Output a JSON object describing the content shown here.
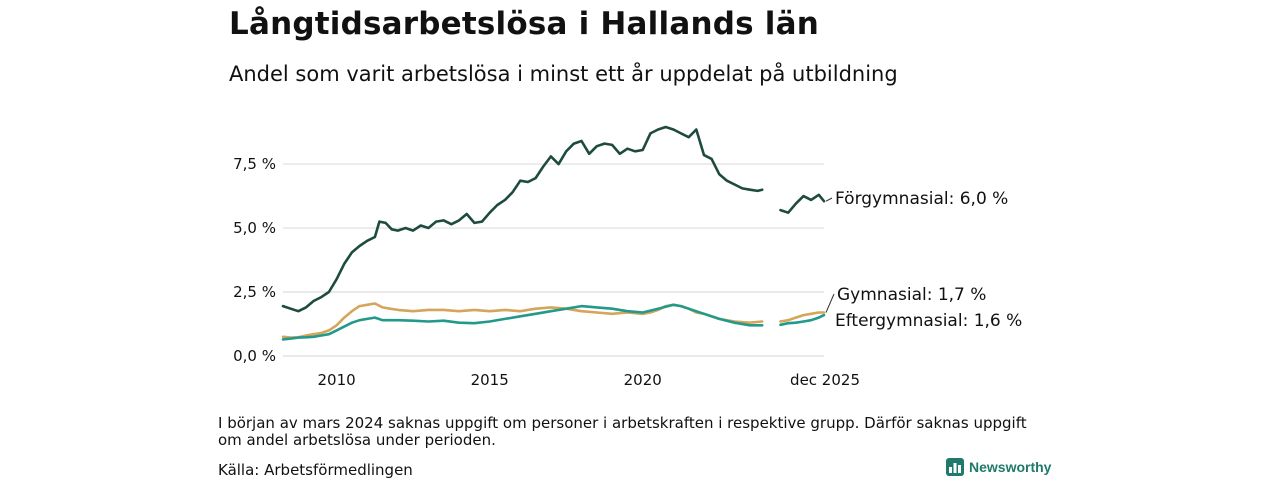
{
  "title": "Långtidsarbetslösa i Hallands län",
  "subtitle": "Andel som varit arbetslösa i minst ett år uppdelat på utbildning",
  "note": "I början av mars 2024 saknas uppgift om personer i arbetskraften i respektive grupp. Därför saknas uppgift om andel arbetslösa under perioden.",
  "source": "Källa: Arbetsförmedlingen",
  "brand": "Newsworthy",
  "colors": {
    "forgymnasial": "#1f4a40",
    "gymnasial": "#d4a55a",
    "eftergymnasial": "#22998a",
    "grid": "#dddddd",
    "brand": "#1f7a6c"
  },
  "chart_data": {
    "type": "line",
    "title": "Långtidsarbetslösa i Hallands län",
    "subtitle": "Andel som varit arbetslösa i minst ett år uppdelat på utbildning",
    "xlim": [
      2008.25,
      2025.92
    ],
    "ylim": [
      0,
      9.3
    ],
    "x_ticks": [
      {
        "value": 2010,
        "label": "2010"
      },
      {
        "value": 2015,
        "label": "2015"
      },
      {
        "value": 2020,
        "label": "2020"
      },
      {
        "value": 2025.92,
        "label": "dec 2025"
      }
    ],
    "y_ticks": [
      {
        "value": 0,
        "label": "0,0 %"
      },
      {
        "value": 2.5,
        "label": "2,5 %"
      },
      {
        "value": 5.0,
        "label": "5,0 %"
      },
      {
        "value": 7.5,
        "label": "7,5 %"
      }
    ],
    "grid": true,
    "gap": [
      2024.17,
      2024.5
    ],
    "series": [
      {
        "name": "Förgymnasial",
        "label": "Förgymnasial: 6,0 %",
        "color_key": "forgymnasial",
        "points": [
          [
            2008.25,
            1.95
          ],
          [
            2008.5,
            1.85
          ],
          [
            2008.75,
            1.75
          ],
          [
            2009.0,
            1.9
          ],
          [
            2009.25,
            2.15
          ],
          [
            2009.5,
            2.3
          ],
          [
            2009.75,
            2.5
          ],
          [
            2010.0,
            3.0
          ],
          [
            2010.25,
            3.6
          ],
          [
            2010.5,
            4.05
          ],
          [
            2010.75,
            4.3
          ],
          [
            2011.0,
            4.5
          ],
          [
            2011.25,
            4.65
          ],
          [
            2011.4,
            5.25
          ],
          [
            2011.6,
            5.2
          ],
          [
            2011.8,
            4.95
          ],
          [
            2012.0,
            4.9
          ],
          [
            2012.25,
            5.0
          ],
          [
            2012.5,
            4.9
          ],
          [
            2012.75,
            5.1
          ],
          [
            2013.0,
            5.0
          ],
          [
            2013.25,
            5.25
          ],
          [
            2013.5,
            5.3
          ],
          [
            2013.75,
            5.15
          ],
          [
            2014.0,
            5.3
          ],
          [
            2014.25,
            5.55
          ],
          [
            2014.5,
            5.2
          ],
          [
            2014.75,
            5.25
          ],
          [
            2015.0,
            5.6
          ],
          [
            2015.25,
            5.9
          ],
          [
            2015.5,
            6.1
          ],
          [
            2015.75,
            6.4
          ],
          [
            2016.0,
            6.85
          ],
          [
            2016.25,
            6.8
          ],
          [
            2016.5,
            6.95
          ],
          [
            2016.75,
            7.4
          ],
          [
            2017.0,
            7.8
          ],
          [
            2017.25,
            7.5
          ],
          [
            2017.5,
            8.0
          ],
          [
            2017.75,
            8.3
          ],
          [
            2018.0,
            8.4
          ],
          [
            2018.25,
            7.9
          ],
          [
            2018.5,
            8.2
          ],
          [
            2018.75,
            8.3
          ],
          [
            2019.0,
            8.25
          ],
          [
            2019.25,
            7.9
          ],
          [
            2019.5,
            8.1
          ],
          [
            2019.75,
            8.0
          ],
          [
            2020.0,
            8.05
          ],
          [
            2020.25,
            8.7
          ],
          [
            2020.5,
            8.85
          ],
          [
            2020.75,
            8.95
          ],
          [
            2021.0,
            8.85
          ],
          [
            2021.25,
            8.7
          ],
          [
            2021.5,
            8.55
          ],
          [
            2021.75,
            8.85
          ],
          [
            2022.0,
            7.85
          ],
          [
            2022.25,
            7.7
          ],
          [
            2022.5,
            7.1
          ],
          [
            2022.75,
            6.85
          ],
          [
            2023.0,
            6.7
          ],
          [
            2023.25,
            6.55
          ],
          [
            2023.5,
            6.5
          ],
          [
            2023.75,
            6.45
          ],
          [
            2023.9,
            6.5
          ],
          [
            2024.17,
            null
          ],
          [
            2024.5,
            5.7
          ],
          [
            2024.75,
            5.6
          ],
          [
            2025.0,
            5.95
          ],
          [
            2025.25,
            6.25
          ],
          [
            2025.5,
            6.1
          ],
          [
            2025.75,
            6.3
          ],
          [
            2025.92,
            6.05
          ]
        ]
      },
      {
        "name": "Gymnasial",
        "label": "Gymnasial: 1,7 %",
        "color_key": "gymnasial",
        "points": [
          [
            2008.25,
            0.75
          ],
          [
            2008.5,
            0.72
          ],
          [
            2008.75,
            0.73
          ],
          [
            2009.0,
            0.8
          ],
          [
            2009.25,
            0.85
          ],
          [
            2009.5,
            0.9
          ],
          [
            2009.75,
            1.0
          ],
          [
            2010.0,
            1.2
          ],
          [
            2010.25,
            1.5
          ],
          [
            2010.5,
            1.75
          ],
          [
            2010.75,
            1.95
          ],
          [
            2011.0,
            2.0
          ],
          [
            2011.25,
            2.05
          ],
          [
            2011.5,
            1.9
          ],
          [
            2011.75,
            1.85
          ],
          [
            2012.0,
            1.8
          ],
          [
            2012.5,
            1.75
          ],
          [
            2013.0,
            1.8
          ],
          [
            2013.5,
            1.8
          ],
          [
            2014.0,
            1.75
          ],
          [
            2014.5,
            1.8
          ],
          [
            2015.0,
            1.75
          ],
          [
            2015.5,
            1.8
          ],
          [
            2016.0,
            1.75
          ],
          [
            2016.5,
            1.85
          ],
          [
            2017.0,
            1.9
          ],
          [
            2017.5,
            1.85
          ],
          [
            2018.0,
            1.75
          ],
          [
            2018.5,
            1.7
          ],
          [
            2019.0,
            1.65
          ],
          [
            2019.5,
            1.7
          ],
          [
            2020.0,
            1.65
          ],
          [
            2020.25,
            1.7
          ],
          [
            2020.5,
            1.8
          ],
          [
            2020.75,
            1.95
          ],
          [
            2021.0,
            2.0
          ],
          [
            2021.25,
            1.95
          ],
          [
            2021.5,
            1.85
          ],
          [
            2021.75,
            1.7
          ],
          [
            2022.0,
            1.65
          ],
          [
            2022.5,
            1.45
          ],
          [
            2023.0,
            1.35
          ],
          [
            2023.5,
            1.3
          ],
          [
            2023.9,
            1.35
          ],
          [
            2024.17,
            null
          ],
          [
            2024.5,
            1.35
          ],
          [
            2024.75,
            1.4
          ],
          [
            2025.0,
            1.5
          ],
          [
            2025.25,
            1.6
          ],
          [
            2025.5,
            1.65
          ],
          [
            2025.75,
            1.7
          ],
          [
            2025.92,
            1.7
          ]
        ]
      },
      {
        "name": "Eftergymnasial",
        "label": "Eftergymnasial: 1,6 %",
        "color_key": "eftergymnasial",
        "points": [
          [
            2008.25,
            0.65
          ],
          [
            2008.5,
            0.68
          ],
          [
            2008.75,
            0.72
          ],
          [
            2009.0,
            0.73
          ],
          [
            2009.25,
            0.75
          ],
          [
            2009.5,
            0.8
          ],
          [
            2009.75,
            0.85
          ],
          [
            2010.0,
            1.0
          ],
          [
            2010.25,
            1.15
          ],
          [
            2010.5,
            1.3
          ],
          [
            2010.75,
            1.4
          ],
          [
            2011.0,
            1.45
          ],
          [
            2011.25,
            1.5
          ],
          [
            2011.5,
            1.4
          ],
          [
            2012.0,
            1.4
          ],
          [
            2012.5,
            1.38
          ],
          [
            2013.0,
            1.35
          ],
          [
            2013.5,
            1.38
          ],
          [
            2014.0,
            1.3
          ],
          [
            2014.5,
            1.28
          ],
          [
            2015.0,
            1.35
          ],
          [
            2015.5,
            1.45
          ],
          [
            2016.0,
            1.55
          ],
          [
            2016.5,
            1.65
          ],
          [
            2017.0,
            1.75
          ],
          [
            2017.5,
            1.85
          ],
          [
            2018.0,
            1.95
          ],
          [
            2018.5,
            1.9
          ],
          [
            2019.0,
            1.85
          ],
          [
            2019.5,
            1.75
          ],
          [
            2020.0,
            1.7
          ],
          [
            2020.5,
            1.85
          ],
          [
            2021.0,
            2.0
          ],
          [
            2021.25,
            1.95
          ],
          [
            2021.5,
            1.85
          ],
          [
            2022.0,
            1.65
          ],
          [
            2022.5,
            1.45
          ],
          [
            2023.0,
            1.3
          ],
          [
            2023.5,
            1.2
          ],
          [
            2023.9,
            1.2
          ],
          [
            2024.17,
            null
          ],
          [
            2024.5,
            1.22
          ],
          [
            2024.75,
            1.28
          ],
          [
            2025.0,
            1.3
          ],
          [
            2025.25,
            1.35
          ],
          [
            2025.5,
            1.4
          ],
          [
            2025.75,
            1.5
          ],
          [
            2025.92,
            1.6
          ]
        ]
      }
    ]
  }
}
